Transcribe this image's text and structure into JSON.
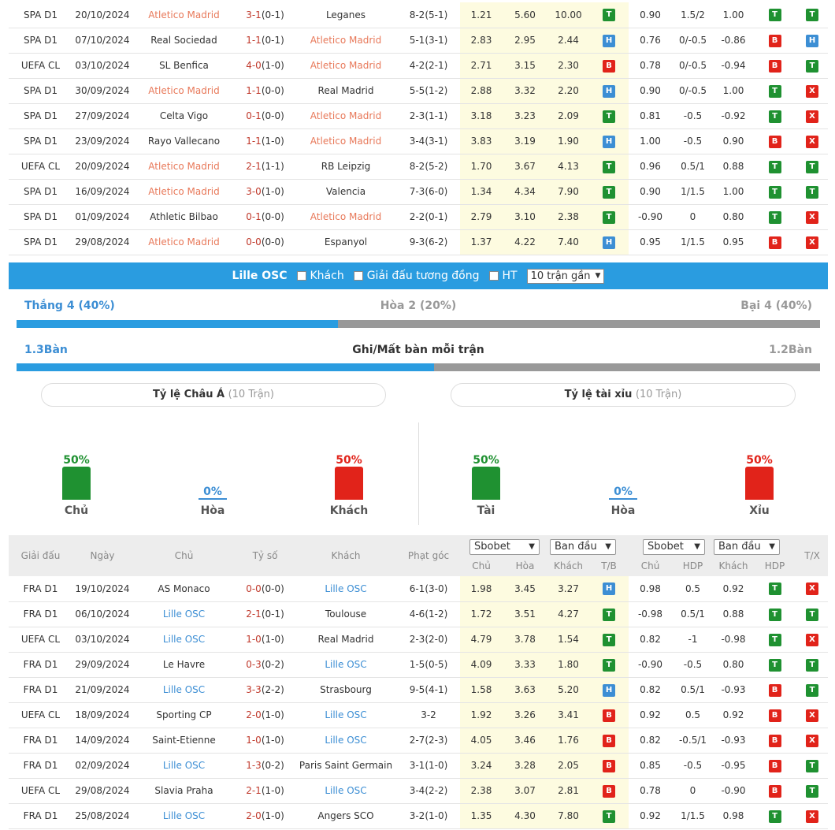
{
  "top_rows": [
    {
      "comp": "SPA D1",
      "date": "20/10/2024",
      "home": "Atletico Madrid",
      "home_hl": true,
      "score": "3-1",
      "ht": "(0-1)",
      "away": "Leganes",
      "away_hl": false,
      "corner": "8-2(5-1)",
      "o1": "1.21",
      "o2": "5.60",
      "o3": "10.00",
      "r1": "T",
      "a1": "0.90",
      "hdp": "1.5/2",
      "a2": "1.00",
      "r2": "T",
      "r3": "T"
    },
    {
      "comp": "SPA D1",
      "date": "07/10/2024",
      "home": "Real Sociedad",
      "home_hl": false,
      "score": "1-1",
      "ht": "(0-1)",
      "away": "Atletico Madrid",
      "away_hl": true,
      "corner": "5-1(3-1)",
      "o1": "2.83",
      "o2": "2.95",
      "o3": "2.44",
      "r1": "H",
      "a1": "0.76",
      "hdp": "0/-0.5",
      "a2": "-0.86",
      "r2": "B",
      "r3": "H"
    },
    {
      "comp": "UEFA CL",
      "date": "03/10/2024",
      "home": "SL Benfica",
      "home_hl": false,
      "score": "4-0",
      "ht": "(1-0)",
      "away": "Atletico Madrid",
      "away_hl": true,
      "corner": "4-2(2-1)",
      "o1": "2.71",
      "o2": "3.15",
      "o3": "2.30",
      "r1": "B",
      "a1": "0.78",
      "hdp": "0/-0.5",
      "a2": "-0.94",
      "r2": "B",
      "r3": "T"
    },
    {
      "comp": "SPA D1",
      "date": "30/09/2024",
      "home": "Atletico Madrid",
      "home_hl": true,
      "score": "1-1",
      "ht": "(0-0)",
      "away": "Real Madrid",
      "away_hl": false,
      "corner": "5-5(1-2)",
      "o1": "2.88",
      "o2": "3.32",
      "o3": "2.20",
      "r1": "H",
      "a1": "0.90",
      "hdp": "0/-0.5",
      "a2": "1.00",
      "r2": "T",
      "r3": "X"
    },
    {
      "comp": "SPA D1",
      "date": "27/09/2024",
      "home": "Celta Vigo",
      "home_hl": false,
      "score": "0-1",
      "ht": "(0-0)",
      "away": "Atletico Madrid",
      "away_hl": true,
      "corner": "2-3(1-1)",
      "o1": "3.18",
      "o2": "3.23",
      "o3": "2.09",
      "r1": "T",
      "a1": "0.81",
      "hdp": "-0.5",
      "a2": "-0.92",
      "r2": "T",
      "r3": "X"
    },
    {
      "comp": "SPA D1",
      "date": "23/09/2024",
      "home": "Rayo Vallecano",
      "home_hl": false,
      "score": "1-1",
      "ht": "(1-0)",
      "away": "Atletico Madrid",
      "away_hl": true,
      "corner": "3-4(3-1)",
      "o1": "3.83",
      "o2": "3.19",
      "o3": "1.90",
      "r1": "H",
      "a1": "1.00",
      "hdp": "-0.5",
      "a2": "0.90",
      "r2": "B",
      "r3": "X"
    },
    {
      "comp": "UEFA CL",
      "date": "20/09/2024",
      "home": "Atletico Madrid",
      "home_hl": true,
      "score": "2-1",
      "ht": "(1-1)",
      "away": "RB Leipzig",
      "away_hl": false,
      "corner": "8-2(5-2)",
      "o1": "1.70",
      "o2": "3.67",
      "o3": "4.13",
      "r1": "T",
      "a1": "0.96",
      "hdp": "0.5/1",
      "a2": "0.88",
      "r2": "T",
      "r3": "T"
    },
    {
      "comp": "SPA D1",
      "date": "16/09/2024",
      "home": "Atletico Madrid",
      "home_hl": true,
      "score": "3-0",
      "ht": "(1-0)",
      "away": "Valencia",
      "away_hl": false,
      "corner": "7-3(6-0)",
      "o1": "1.34",
      "o2": "4.34",
      "o3": "7.90",
      "r1": "T",
      "a1": "0.90",
      "hdp": "1/1.5",
      "a2": "1.00",
      "r2": "T",
      "r3": "T"
    },
    {
      "comp": "SPA D1",
      "date": "01/09/2024",
      "home": "Athletic Bilbao",
      "home_hl": false,
      "score": "0-1",
      "ht": "(0-0)",
      "away": "Atletico Madrid",
      "away_hl": true,
      "corner": "2-2(0-1)",
      "o1": "2.79",
      "o2": "3.10",
      "o3": "2.38",
      "r1": "T",
      "a1": "-0.90",
      "hdp": "0",
      "a2": "0.80",
      "r2": "T",
      "r3": "X"
    },
    {
      "comp": "SPA D1",
      "date": "29/08/2024",
      "home": "Atletico Madrid",
      "home_hl": true,
      "score": "0-0",
      "ht": "(0-0)",
      "away": "Espanyol",
      "away_hl": false,
      "corner": "9-3(6-2)",
      "o1": "1.37",
      "o2": "4.22",
      "o3": "7.40",
      "r1": "H",
      "a1": "0.95",
      "hdp": "1/1.5",
      "a2": "0.95",
      "r2": "B",
      "r3": "X"
    }
  ],
  "filter": {
    "team": "Lille OSC",
    "opt_away": "Khách",
    "opt_same": "Giải đấu tương đồng",
    "opt_ht": "HT",
    "select": "10 trận gần"
  },
  "wdl": {
    "win": "Thắng 4 (40%)",
    "draw": "Hòa 2 (20%)",
    "loss": "Bại 4 (40%)",
    "win_frac": 0.4
  },
  "goals": {
    "scored": "1.3Bàn",
    "title": "Ghi/Mất bàn mỗi trận",
    "conceded": "1.2Bàn",
    "scored_frac": 0.52
  },
  "asia": {
    "title": "Tỷ lệ Châu Á",
    "sub": "(10 Trận)",
    "home_pct": "50%",
    "draw_pct": "0%",
    "away_pct": "50%",
    "home": "Chủ",
    "draw": "Hòa",
    "away": "Khách"
  },
  "ou": {
    "title": "Tỷ lệ tài xỉu",
    "sub": "(10 Trận)",
    "over_pct": "50%",
    "draw_pct": "0%",
    "under_pct": "50%",
    "over": "Tài",
    "draw": "Hòa",
    "under": "Xỉu"
  },
  "colors": {
    "green": "#1f9131",
    "red": "#e1231a",
    "blue": "#2a9ce0"
  },
  "header": {
    "comp": "Giải đấu",
    "date": "Ngày",
    "home": "Chủ",
    "score": "Tỷ số",
    "away": "Khách",
    "corner": "Phạt góc",
    "book1": "Sbobet",
    "type1": "Ban đầu",
    "book2": "Sbobet",
    "type2": "Ban đầu",
    "h_home": "Chủ",
    "h_draw": "Hòa",
    "h_away": "Khách",
    "h_tb": "T/B",
    "h_home2": "Chủ",
    "h_hdp": "HDP",
    "h_away2": "Khách",
    "h_hdp2": "HDP",
    "h_tx": "T/X"
  },
  "bot_rows": [
    {
      "comp": "FRA D1",
      "date": "19/10/2024",
      "home": "AS Monaco",
      "home_hl": false,
      "score": "0-0",
      "ht": "(0-0)",
      "away": "Lille OSC",
      "away_hl": true,
      "corner": "6-1(3-0)",
      "o1": "1.98",
      "o2": "3.45",
      "o3": "3.27",
      "r1": "H",
      "a1": "0.98",
      "hdp": "0.5",
      "a2": "0.92",
      "r2": "T",
      "r3": "X"
    },
    {
      "comp": "FRA D1",
      "date": "06/10/2024",
      "home": "Lille OSC",
      "home_hl": true,
      "score": "2-1",
      "ht": "(0-1)",
      "away": "Toulouse",
      "away_hl": false,
      "corner": "4-6(1-2)",
      "o1": "1.72",
      "o2": "3.51",
      "o3": "4.27",
      "r1": "T",
      "a1": "-0.98",
      "hdp": "0.5/1",
      "a2": "0.88",
      "r2": "T",
      "r3": "T"
    },
    {
      "comp": "UEFA CL",
      "date": "03/10/2024",
      "home": "Lille OSC",
      "home_hl": true,
      "score": "1-0",
      "ht": "(1-0)",
      "away": "Real Madrid",
      "away_hl": false,
      "corner": "2-3(2-0)",
      "o1": "4.79",
      "o2": "3.78",
      "o3": "1.54",
      "r1": "T",
      "a1": "0.82",
      "hdp": "-1",
      "a2": "-0.98",
      "r2": "T",
      "r3": "X"
    },
    {
      "comp": "FRA D1",
      "date": "29/09/2024",
      "home": "Le Havre",
      "home_hl": false,
      "score": "0-3",
      "ht": "(0-2)",
      "away": "Lille OSC",
      "away_hl": true,
      "corner": "1-5(0-5)",
      "o1": "4.09",
      "o2": "3.33",
      "o3": "1.80",
      "r1": "T",
      "a1": "-0.90",
      "hdp": "-0.5",
      "a2": "0.80",
      "r2": "T",
      "r3": "T"
    },
    {
      "comp": "FRA D1",
      "date": "21/09/2024",
      "home": "Lille OSC",
      "home_hl": true,
      "score": "3-3",
      "ht": "(2-2)",
      "away": "Strasbourg",
      "away_hl": false,
      "corner": "9-5(4-1)",
      "o1": "1.58",
      "o2": "3.63",
      "o3": "5.20",
      "r1": "H",
      "a1": "0.82",
      "hdp": "0.5/1",
      "a2": "-0.93",
      "r2": "B",
      "r3": "T"
    },
    {
      "comp": "UEFA CL",
      "date": "18/09/2024",
      "home": "Sporting CP",
      "home_hl": false,
      "score": "2-0",
      "ht": "(1-0)",
      "away": "Lille OSC",
      "away_hl": true,
      "corner": "3-2",
      "o1": "1.92",
      "o2": "3.26",
      "o3": "3.41",
      "r1": "B",
      "a1": "0.92",
      "hdp": "0.5",
      "a2": "0.92",
      "r2": "B",
      "r3": "X"
    },
    {
      "comp": "FRA D1",
      "date": "14/09/2024",
      "home": "Saint-Etienne",
      "home_hl": false,
      "score": "1-0",
      "ht": "(1-0)",
      "away": "Lille OSC",
      "away_hl": true,
      "corner": "2-7(2-3)",
      "o1": "4.05",
      "o2": "3.46",
      "o3": "1.76",
      "r1": "B",
      "a1": "0.82",
      "hdp": "-0.5/1",
      "a2": "-0.93",
      "r2": "B",
      "r3": "X"
    },
    {
      "comp": "FRA D1",
      "date": "02/09/2024",
      "home": "Lille OSC",
      "home_hl": true,
      "score": "1-3",
      "ht": "(0-2)",
      "away": "Paris Saint Germain",
      "away_hl": false,
      "corner": "3-1(1-0)",
      "o1": "3.24",
      "o2": "3.28",
      "o3": "2.05",
      "r1": "B",
      "a1": "0.85",
      "hdp": "-0.5",
      "a2": "-0.95",
      "r2": "B",
      "r3": "T"
    },
    {
      "comp": "UEFA CL",
      "date": "29/08/2024",
      "home": "Slavia Praha",
      "home_hl": false,
      "score": "2-1",
      "ht": "(1-0)",
      "away": "Lille OSC",
      "away_hl": true,
      "corner": "3-4(2-2)",
      "o1": "2.38",
      "o2": "3.07",
      "o3": "2.81",
      "r1": "B",
      "a1": "0.78",
      "hdp": "0",
      "a2": "-0.90",
      "r2": "B",
      "r3": "T"
    },
    {
      "comp": "FRA D1",
      "date": "25/08/2024",
      "home": "Lille OSC",
      "home_hl": true,
      "score": "2-0",
      "ht": "(1-0)",
      "away": "Angers SCO",
      "away_hl": false,
      "corner": "3-2(1-0)",
      "o1": "1.35",
      "o2": "4.30",
      "o3": "7.80",
      "r1": "T",
      "a1": "0.92",
      "hdp": "1/1.5",
      "a2": "0.98",
      "r2": "T",
      "r3": "X"
    }
  ]
}
